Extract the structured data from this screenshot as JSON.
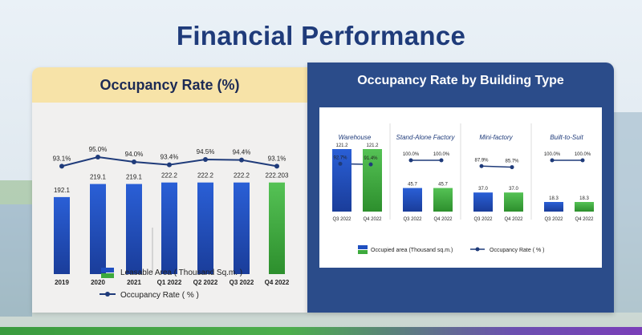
{
  "title": "Financial Performance",
  "colors": {
    "bar_blue": "#1f4fc0",
    "bar_green": "#3daa3d",
    "line": "#1f3b7a",
    "panel_dark": "#2b4c8a",
    "header_yellow": "#f7e3a8"
  },
  "left_panel": {
    "header": "Occupancy Rate (%)"
  },
  "right_panel": {
    "header": "Occupancy Rate by Building Type"
  },
  "chart_data": [
    {
      "type": "bar",
      "title": "Occupancy Rate (%)",
      "categories": [
        "2019",
        "2020",
        "2021",
        "Q1 2022",
        "Q2 2022",
        "Q3 2022",
        "Q4 2022"
      ],
      "series": [
        {
          "name": "Leasable Area ( Thousand Sq.m. )",
          "type": "bar",
          "values": [
            192.1,
            219.1,
            219.1,
            222.2,
            222.2,
            222.2,
            222.203
          ],
          "labels": [
            "192.1",
            "219.1",
            "219.1",
            "222.2",
            "222.2",
            "222.2",
            "222.203"
          ]
        },
        {
          "name": "Occupancy Rate ( % )",
          "type": "line",
          "values": [
            93.1,
            95.0,
            94.0,
            93.4,
            94.5,
            94.4,
            93.1
          ],
          "labels": [
            "93.1%",
            "95.0%",
            "94.0%",
            "93.4%",
            "94.5%",
            "94.4%",
            "93.1%"
          ]
        }
      ],
      "ylim": [
        0,
        230
      ]
    },
    {
      "type": "bar",
      "title": "Occupancy Rate by Building Type",
      "groups": [
        {
          "name": "Warehouse",
          "categories": [
            "Q3 2022",
            "Q4 2022"
          ],
          "area": [
            121.2,
            121.2
          ],
          "area_labels": [
            "121.2",
            "121.2"
          ],
          "occupancy": [
            92.7,
            91.4
          ],
          "occupancy_labels": [
            "92.7%",
            "91.4%"
          ]
        },
        {
          "name": "Stand-Alone Factory",
          "categories": [
            "Q3 2022",
            "Q4 2022"
          ],
          "area": [
            45.7,
            45.7
          ],
          "area_labels": [
            "45.7",
            "45.7"
          ],
          "occupancy": [
            100.0,
            100.0
          ],
          "occupancy_labels": [
            "100.0%",
            "100.0%"
          ]
        },
        {
          "name": "Mini-factory",
          "categories": [
            "Q3 2022",
            "Q4 2022"
          ],
          "area": [
            37.0,
            37.0
          ],
          "area_labels": [
            "37.0",
            "37.0"
          ],
          "occupancy": [
            87.9,
            85.7
          ],
          "occupancy_labels": [
            "87.9%",
            "85.7%"
          ]
        },
        {
          "name": "Built-to-Suit",
          "categories": [
            "Q3 2022",
            "Q4 2022"
          ],
          "area": [
            18.3,
            18.3
          ],
          "area_labels": [
            "18.3",
            "18.3"
          ],
          "occupancy": [
            100.0,
            100.0
          ],
          "occupancy_labels": [
            "100.0%",
            "100.0%"
          ]
        }
      ],
      "legend": [
        {
          "name": "Occupied area (Thousand sq.m.)",
          "type": "bar"
        },
        {
          "name": "Occupancy Rate ( % )",
          "type": "line"
        }
      ]
    }
  ]
}
